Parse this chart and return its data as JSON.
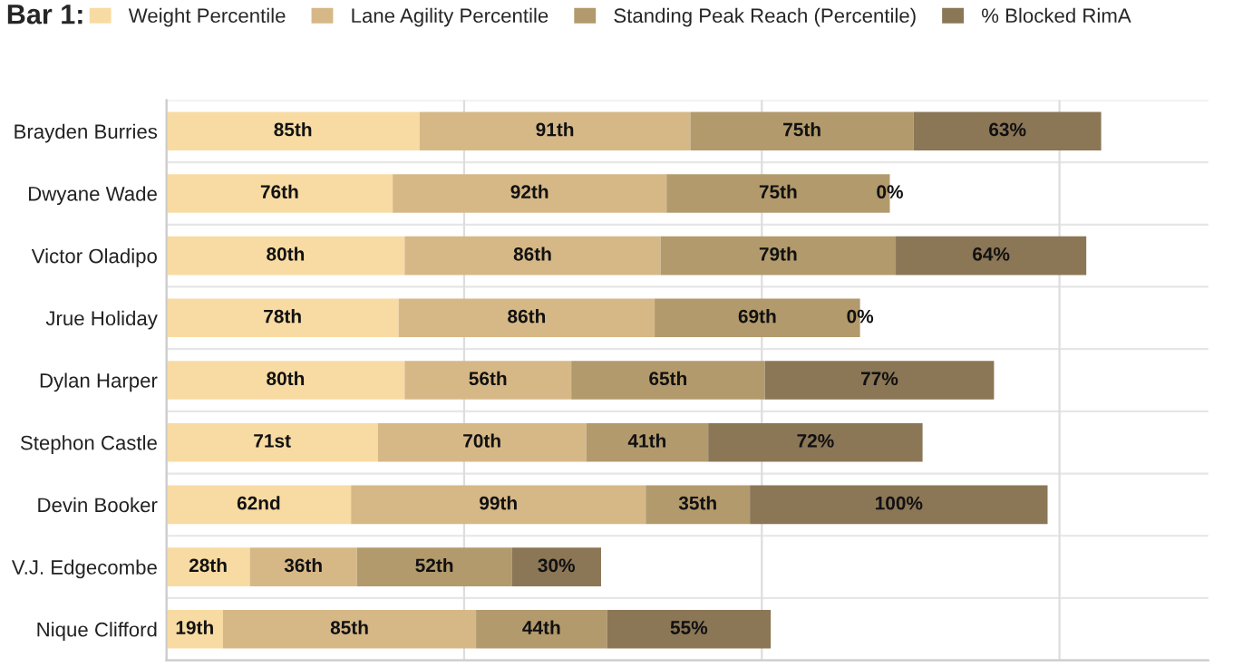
{
  "chart_data": {
    "type": "bar",
    "orientation": "horizontal",
    "stacked": true,
    "legend_title": "Bar 1:",
    "legend": "top left",
    "grid": "x",
    "tick_labels": "y",
    "categories": [
      "Brayden Burries",
      "Dwyane Wade",
      "Victor Oladipo",
      "Jrue Holiday",
      "Dylan Harper",
      "Stephon Castle",
      "Devin Booker",
      "V.J. Edgecombe",
      "Nique Clifford"
    ],
    "xlim": [
      0,
      350
    ],
    "xticks": [
      {
        "value": 0,
        "label": null
      },
      {
        "value": 100,
        "label": null
      },
      {
        "value": 200,
        "label": null
      },
      {
        "value": 300,
        "label": null
      }
    ],
    "series": [
      {
        "name": "Weight Percentile",
        "color": "#f8dba3",
        "values": [
          85,
          76,
          80,
          78,
          80,
          71,
          62,
          28,
          19
        ],
        "value_labels": [
          "85th",
          "76th",
          "80th",
          "78th",
          "80th",
          "71st",
          "62nd",
          "28th",
          "19th"
        ]
      },
      {
        "name": "Lane Agility Percentile",
        "color": "#d6b887",
        "values": [
          91,
          92,
          86,
          86,
          56,
          70,
          99,
          36,
          85
        ],
        "value_labels": [
          "91th",
          "92th",
          "86th",
          "86th",
          "56th",
          "70th",
          "99th",
          "36th",
          "85th"
        ]
      },
      {
        "name": "Standing Peak Reach (Percentile)",
        "color": "#b29a6c",
        "values": [
          75,
          75,
          79,
          69,
          65,
          41,
          35,
          52,
          44
        ],
        "value_labels": [
          "75th",
          "75th",
          "79th",
          "69th",
          "65th",
          "41th",
          "35th",
          "52th",
          "44th"
        ]
      },
      {
        "name": "% Blocked RimA",
        "color": "#8b7656",
        "values": [
          63,
          0,
          64,
          0,
          77,
          72,
          100,
          30,
          55
        ],
        "value_labels": [
          "63%",
          "0%",
          "64%",
          "0%",
          "77%",
          "72%",
          "100%",
          "30%",
          "55%"
        ]
      }
    ]
  }
}
